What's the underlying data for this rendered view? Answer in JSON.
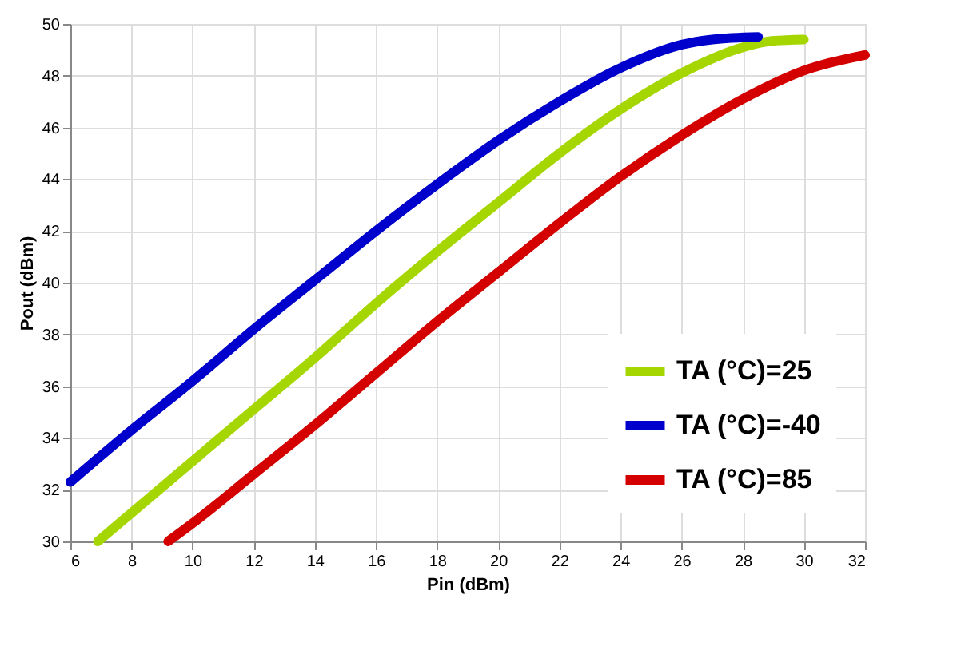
{
  "chart_data": {
    "type": "line",
    "xlabel": "Pin (dBm)",
    "ylabel": "Pout (dBm)",
    "xlim": [
      6,
      32
    ],
    "xticks": [
      6,
      8,
      10,
      12,
      14,
      16,
      18,
      20,
      22,
      24,
      26,
      28,
      30,
      32
    ],
    "ylim": [
      30,
      50
    ],
    "yticks": [
      30,
      32,
      34,
      36,
      38,
      40,
      42,
      44,
      46,
      48,
      50
    ],
    "grid": true,
    "legend": "bottom right",
    "line_style": "solid",
    "marker": "none",
    "series": [
      {
        "name": "TA (°C)=25",
        "color": "#a5d600",
        "x": [
          6.9,
          8,
          10,
          12,
          14,
          16,
          18,
          20,
          22,
          24,
          26,
          28,
          29,
          30
        ],
        "values": [
          30,
          31.1,
          33.1,
          35.1,
          37.1,
          39.2,
          41.2,
          43.1,
          45.0,
          46.7,
          48.1,
          49.1,
          49.35,
          49.4
        ]
      },
      {
        "name": "TA (°C)=-40",
        "color": "#0000cc",
        "x": [
          6,
          8,
          10,
          12,
          14,
          16,
          18,
          20,
          22,
          24,
          26,
          27,
          28.5
        ],
        "values": [
          32.3,
          34.3,
          36.2,
          38.2,
          40.1,
          42.0,
          43.8,
          45.5,
          47.0,
          48.3,
          49.2,
          49.4,
          49.5
        ]
      },
      {
        "name": "TA (°C)=85",
        "color": "#d40000",
        "x": [
          9.2,
          10,
          12,
          14,
          16,
          18,
          20,
          22,
          24,
          26,
          28,
          30,
          32
        ],
        "values": [
          30,
          30.7,
          32.6,
          34.5,
          36.5,
          38.5,
          40.4,
          42.3,
          44.1,
          45.7,
          47.1,
          48.2,
          48.8
        ]
      }
    ]
  }
}
